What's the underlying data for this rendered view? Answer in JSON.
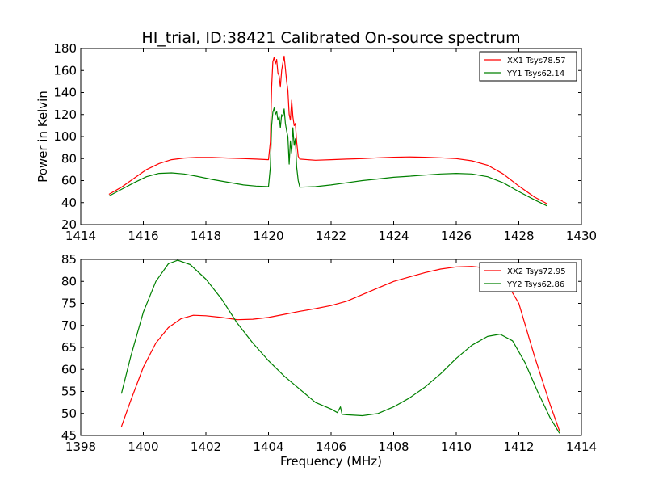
{
  "figure_title": "HI_trial, ID:38421 Calibrated On-source spectrum",
  "chart_data": [
    {
      "type": "line",
      "title": "HI_trial, ID:38421 Calibrated On-source spectrum",
      "xlabel": "",
      "ylabel": "Power in Kelvin",
      "xlim": [
        1414,
        1430
      ],
      "ylim": [
        20,
        180
      ],
      "xticks": [
        1414,
        1416,
        1418,
        1420,
        1422,
        1424,
        1426,
        1428,
        1430
      ],
      "yticks": [
        20,
        40,
        60,
        80,
        100,
        120,
        140,
        160,
        180
      ],
      "grid": false,
      "legend_position": "top-right",
      "series": [
        {
          "name": "XX1 Tsys78.57",
          "color": "#ff0000",
          "points": [
            [
              1414.9,
              47.5
            ],
            [
              1415.3,
              54
            ],
            [
              1415.7,
              62
            ],
            [
              1416.1,
              70
            ],
            [
              1416.5,
              75.5
            ],
            [
              1416.9,
              79
            ],
            [
              1417.3,
              80.5
            ],
            [
              1417.7,
              81
            ],
            [
              1418.2,
              81
            ],
            [
              1418.7,
              80.5
            ],
            [
              1419.2,
              80
            ],
            [
              1419.6,
              79.5
            ],
            [
              1420.0,
              79
            ],
            [
              1420.06,
              95
            ],
            [
              1420.1,
              145
            ],
            [
              1420.14,
              168
            ],
            [
              1420.18,
              172
            ],
            [
              1420.22,
              166
            ],
            [
              1420.26,
              170
            ],
            [
              1420.3,
              158
            ],
            [
              1420.34,
              155
            ],
            [
              1420.38,
              145
            ],
            [
              1420.42,
              160
            ],
            [
              1420.46,
              167
            ],
            [
              1420.5,
              173
            ],
            [
              1420.54,
              162
            ],
            [
              1420.58,
              150
            ],
            [
              1420.62,
              142
            ],
            [
              1420.66,
              120
            ],
            [
              1420.7,
              115
            ],
            [
              1420.74,
              133
            ],
            [
              1420.78,
              118
            ],
            [
              1420.82,
              110
            ],
            [
              1420.86,
              112
            ],
            [
              1420.9,
              95
            ],
            [
              1420.95,
              82
            ],
            [
              1421.0,
              79.5
            ],
            [
              1421.5,
              78.5
            ],
            [
              1422.0,
              79
            ],
            [
              1422.5,
              79.5
            ],
            [
              1423.0,
              80
            ],
            [
              1423.5,
              80.7
            ],
            [
              1424.0,
              81.2
            ],
            [
              1424.5,
              81.5
            ],
            [
              1425.0,
              81.2
            ],
            [
              1425.5,
              80.7
            ],
            [
              1426.0,
              80
            ],
            [
              1426.5,
              78
            ],
            [
              1427.0,
              74
            ],
            [
              1427.5,
              66
            ],
            [
              1428.0,
              55
            ],
            [
              1428.5,
              45
            ],
            [
              1428.9,
              39
            ]
          ]
        },
        {
          "name": "YY1 Tsys62.14",
          "color": "#008000",
          "points": [
            [
              1414.9,
              46
            ],
            [
              1415.3,
              52
            ],
            [
              1415.7,
              58
            ],
            [
              1416.1,
              63.5
            ],
            [
              1416.5,
              66.5
            ],
            [
              1416.9,
              67
            ],
            [
              1417.3,
              66
            ],
            [
              1417.7,
              64
            ],
            [
              1418.2,
              61
            ],
            [
              1418.7,
              58.5
            ],
            [
              1419.2,
              56
            ],
            [
              1419.6,
              55
            ],
            [
              1420.0,
              54.5
            ],
            [
              1420.06,
              72
            ],
            [
              1420.1,
              110
            ],
            [
              1420.14,
              122
            ],
            [
              1420.18,
              126
            ],
            [
              1420.22,
              120
            ],
            [
              1420.26,
              123
            ],
            [
              1420.3,
              115
            ],
            [
              1420.34,
              118
            ],
            [
              1420.38,
              108
            ],
            [
              1420.42,
              120
            ],
            [
              1420.46,
              118
            ],
            [
              1420.5,
              125
            ],
            [
              1420.54,
              112
            ],
            [
              1420.58,
              105
            ],
            [
              1420.62,
              100
            ],
            [
              1420.66,
              75
            ],
            [
              1420.7,
              96
            ],
            [
              1420.74,
              85
            ],
            [
              1420.78,
              108
            ],
            [
              1420.82,
              92
            ],
            [
              1420.86,
              98
            ],
            [
              1420.9,
              72
            ],
            [
              1420.95,
              60
            ],
            [
              1421.0,
              54
            ],
            [
              1421.5,
              54.5
            ],
            [
              1422.0,
              56
            ],
            [
              1422.5,
              58
            ],
            [
              1423.0,
              60
            ],
            [
              1423.5,
              61.5
            ],
            [
              1424.0,
              63
            ],
            [
              1424.5,
              64
            ],
            [
              1425.0,
              65
            ],
            [
              1425.5,
              66
            ],
            [
              1426.0,
              66.5
            ],
            [
              1426.5,
              66
            ],
            [
              1427.0,
              63.5
            ],
            [
              1427.5,
              58
            ],
            [
              1428.0,
              50
            ],
            [
              1428.5,
              42.5
            ],
            [
              1428.9,
              37
            ]
          ]
        }
      ]
    },
    {
      "type": "line",
      "title": "",
      "xlabel": "Frequency (MHz)",
      "ylabel": "",
      "xlim": [
        1398,
        1414
      ],
      "ylim": [
        45,
        85
      ],
      "xticks": [
        1398,
        1400,
        1402,
        1404,
        1406,
        1408,
        1410,
        1412,
        1414
      ],
      "yticks": [
        45,
        50,
        55,
        60,
        65,
        70,
        75,
        80,
        85
      ],
      "grid": false,
      "legend_position": "top-right",
      "series": [
        {
          "name": "XX2 Tsys72.95",
          "color": "#ff0000",
          "points": [
            [
              1399.3,
              47
            ],
            [
              1399.6,
              53
            ],
            [
              1400.0,
              60.5
            ],
            [
              1400.4,
              66
            ],
            [
              1400.8,
              69.5
            ],
            [
              1401.2,
              71.5
            ],
            [
              1401.6,
              72.3
            ],
            [
              1402.0,
              72.2
            ],
            [
              1402.5,
              71.8
            ],
            [
              1403.0,
              71.3
            ],
            [
              1403.5,
              71.4
            ],
            [
              1404.0,
              71.8
            ],
            [
              1404.5,
              72.5
            ],
            [
              1405.0,
              73.2
            ],
            [
              1405.5,
              73.8
            ],
            [
              1406.0,
              74.5
            ],
            [
              1406.5,
              75.5
            ],
            [
              1407.0,
              77
            ],
            [
              1407.5,
              78.5
            ],
            [
              1408.0,
              80
            ],
            [
              1408.5,
              81
            ],
            [
              1409.0,
              82
            ],
            [
              1409.5,
              82.8
            ],
            [
              1410.0,
              83.3
            ],
            [
              1410.5,
              83.4
            ],
            [
              1411.0,
              83
            ],
            [
              1411.5,
              81
            ],
            [
              1412.0,
              75
            ],
            [
              1412.5,
              63
            ],
            [
              1413.0,
              52
            ],
            [
              1413.3,
              46
            ]
          ]
        },
        {
          "name": "YY2 Tsys62.86",
          "color": "#008000",
          "points": [
            [
              1399.3,
              54.5
            ],
            [
              1399.6,
              63
            ],
            [
              1400.0,
              73
            ],
            [
              1400.4,
              80
            ],
            [
              1400.8,
              84
            ],
            [
              1401.1,
              84.8
            ],
            [
              1401.5,
              83.8
            ],
            [
              1402.0,
              80.5
            ],
            [
              1402.5,
              76
            ],
            [
              1403.0,
              70.5
            ],
            [
              1403.5,
              66
            ],
            [
              1404.0,
              62
            ],
            [
              1404.5,
              58.5
            ],
            [
              1405.0,
              55.5
            ],
            [
              1405.5,
              52.5
            ],
            [
              1406.0,
              51
            ],
            [
              1406.2,
              50.2
            ],
            [
              1406.3,
              51.5
            ],
            [
              1406.35,
              49.8
            ],
            [
              1406.5,
              49.7
            ],
            [
              1407.0,
              49.5
            ],
            [
              1407.5,
              50
            ],
            [
              1408.0,
              51.5
            ],
            [
              1408.5,
              53.5
            ],
            [
              1409.0,
              56
            ],
            [
              1409.5,
              59
            ],
            [
              1410.0,
              62.5
            ],
            [
              1410.5,
              65.5
            ],
            [
              1411.0,
              67.5
            ],
            [
              1411.4,
              68
            ],
            [
              1411.8,
              66.5
            ],
            [
              1412.2,
              61.5
            ],
            [
              1412.6,
              55
            ],
            [
              1413.0,
              49
            ],
            [
              1413.3,
              45.5
            ]
          ]
        }
      ]
    }
  ]
}
